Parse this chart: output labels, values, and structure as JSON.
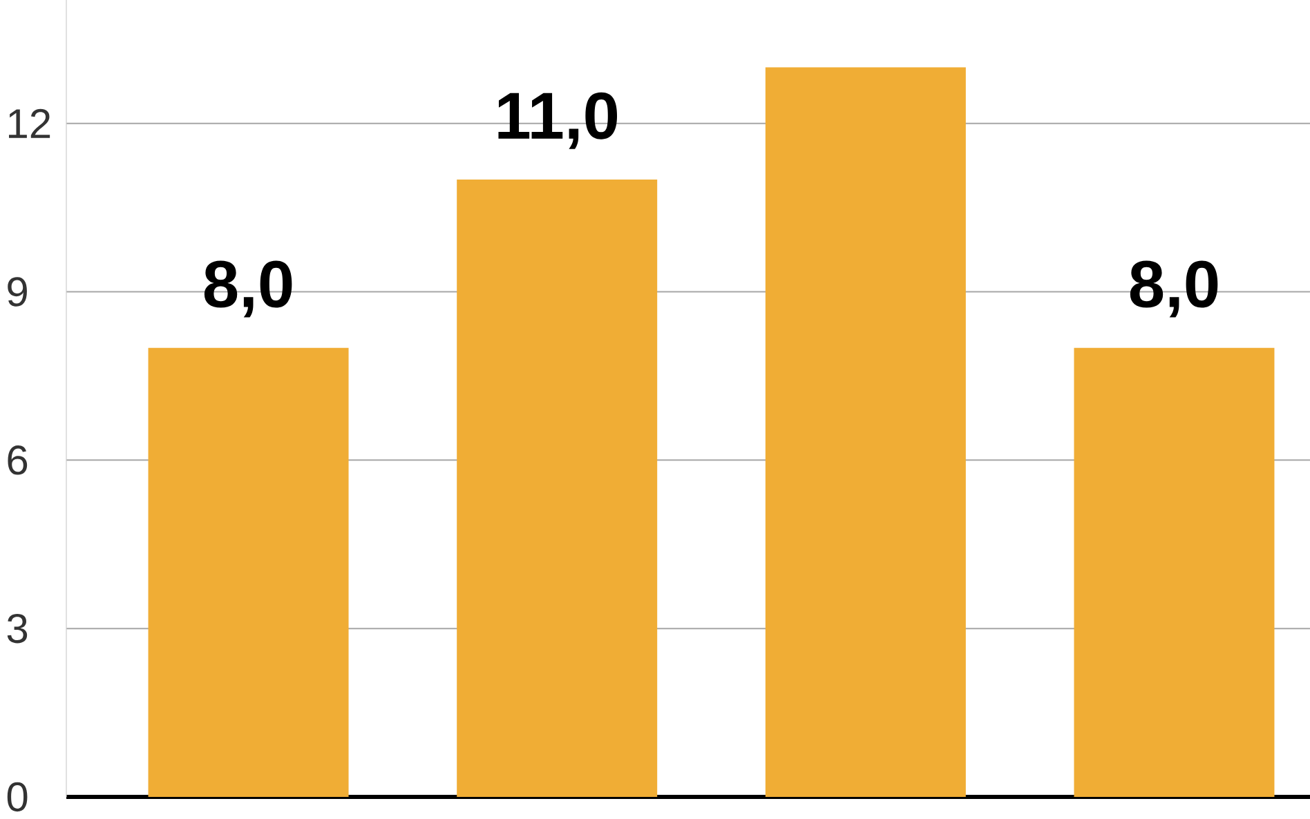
{
  "chart_data": {
    "type": "bar",
    "categories": [
      null,
      null,
      null,
      null
    ],
    "values": [
      8,
      11,
      13,
      8
    ],
    "color": "#f0ad35",
    "value_labels": [
      "8,0",
      "11,0",
      null,
      "8,0"
    ],
    "ylim": [
      0,
      14.2
    ],
    "yticks": [
      0,
      3,
      6,
      9,
      12
    ],
    "grid": "y"
  }
}
